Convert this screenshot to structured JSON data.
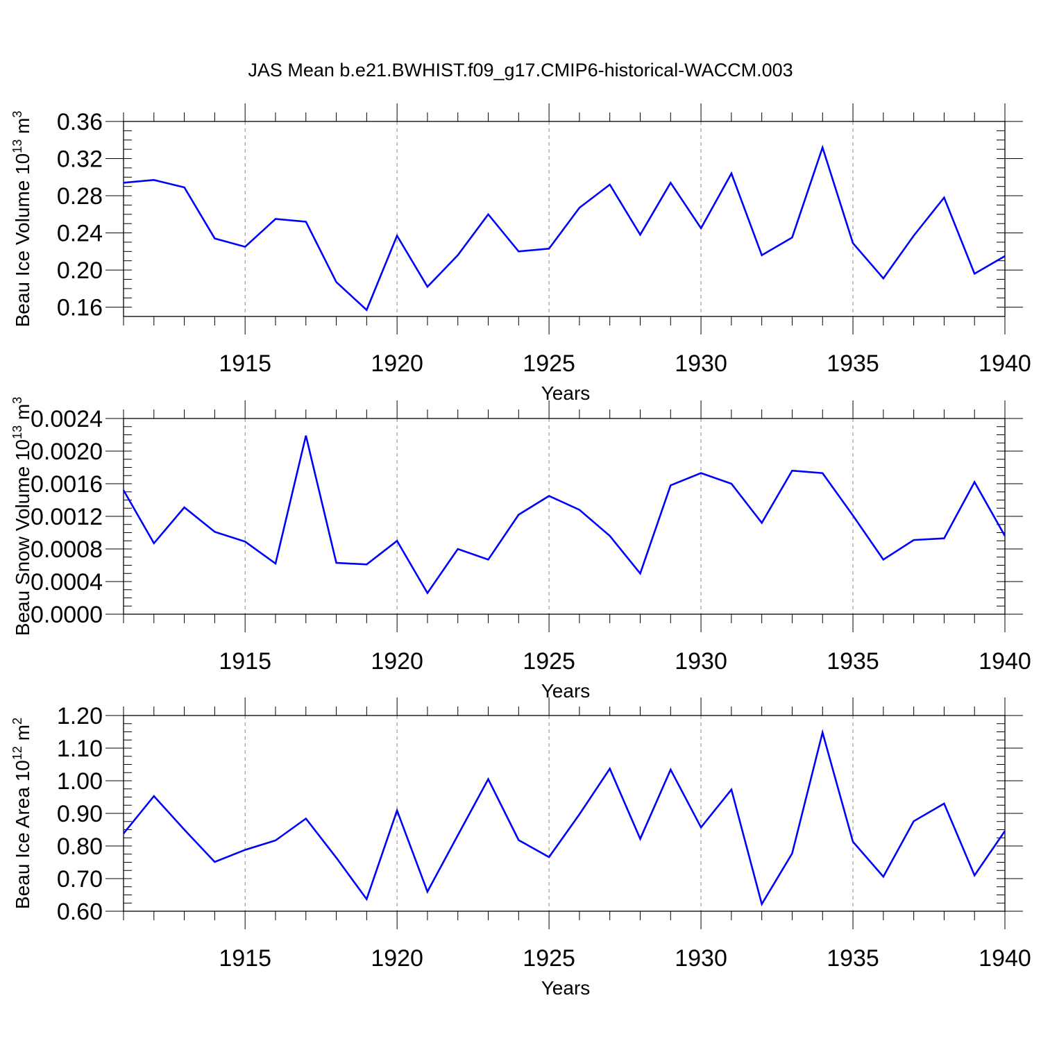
{
  "title": "JAS Mean b.e21.BWHIST.f09_g17.CMIP6-historical-WACCM.003",
  "chart_data": [
    {
      "type": "line",
      "title": "",
      "xlabel": "Years",
      "ylabel": {
        "text": "Beau Ice Volume 10",
        "sup": "13",
        "text2": " m",
        "sup2": "3"
      },
      "xlim": [
        1911,
        1940
      ],
      "ylim": [
        0.15,
        0.36
      ],
      "xticks": [
        "1915",
        "1920",
        "1925",
        "1930",
        "1935",
        "1940"
      ],
      "yticks": [
        "0.16",
        "0.20",
        "0.24",
        "0.28",
        "0.32",
        "0.36"
      ],
      "grid": "vertical dashed at major x ticks",
      "color": "#0000ff",
      "x": [
        1911,
        1912,
        1913,
        1914,
        1915,
        1916,
        1917,
        1918,
        1919,
        1920,
        1921,
        1922,
        1923,
        1924,
        1925,
        1926,
        1927,
        1928,
        1929,
        1930,
        1931,
        1932,
        1933,
        1934,
        1935,
        1936,
        1937,
        1938,
        1939,
        1940
      ],
      "values": [
        0.294,
        0.297,
        0.289,
        0.234,
        0.225,
        0.255,
        0.252,
        0.187,
        0.157,
        0.237,
        0.182,
        0.216,
        0.26,
        0.22,
        0.223,
        0.267,
        0.292,
        0.238,
        0.294,
        0.245,
        0.304,
        0.216,
        0.235,
        0.332,
        0.229,
        0.191,
        0.237,
        0.278,
        0.196,
        0.215
      ]
    },
    {
      "type": "line",
      "title": "",
      "xlabel": "Years",
      "ylabel": {
        "text": "Beau Snow Volume 10",
        "sup": "13",
        "text2": " m",
        "sup2": "3"
      },
      "xlim": [
        1911,
        1940
      ],
      "ylim": [
        0.0,
        0.0024
      ],
      "xticks": [
        "1915",
        "1920",
        "1925",
        "1930",
        "1935",
        "1940"
      ],
      "yticks": [
        "0.0000",
        "0.0004",
        "0.0008",
        "0.0012",
        "0.0016",
        "0.0020",
        "0.0024"
      ],
      "grid": "vertical dashed at major x ticks",
      "color": "#0000ff",
      "x": [
        1911,
        1912,
        1913,
        1914,
        1915,
        1916,
        1917,
        1918,
        1919,
        1920,
        1921,
        1922,
        1923,
        1924,
        1925,
        1926,
        1927,
        1928,
        1929,
        1930,
        1931,
        1932,
        1933,
        1934,
        1935,
        1936,
        1937,
        1938,
        1939,
        1940
      ],
      "values": [
        0.00152,
        0.00087,
        0.00131,
        0.00101,
        0.00089,
        0.00062,
        0.00219,
        0.00063,
        0.00061,
        0.0009,
        0.00026,
        0.0008,
        0.00067,
        0.00122,
        0.00145,
        0.00128,
        0.00096,
        0.0005,
        0.00158,
        0.00173,
        0.0016,
        0.00112,
        0.00176,
        0.00173,
        0.00121,
        0.00067,
        0.00091,
        0.00093,
        0.00162,
        0.00096
      ]
    },
    {
      "type": "line",
      "title": "",
      "xlabel": "Years",
      "ylabel": {
        "text": "Beau Ice Area 10",
        "sup": "12",
        "text2": " m",
        "sup2": "2"
      },
      "xlim": [
        1911,
        1940
      ],
      "ylim": [
        0.6,
        1.2
      ],
      "xticks": [
        "1915",
        "1920",
        "1925",
        "1930",
        "1935",
        "1940"
      ],
      "yticks": [
        "0.60",
        "0.70",
        "0.80",
        "0.90",
        "1.00",
        "1.10",
        "1.20"
      ],
      "grid": "vertical dashed at major x ticks",
      "color": "#0000ff",
      "x": [
        1911,
        1912,
        1913,
        1914,
        1915,
        1916,
        1917,
        1918,
        1919,
        1920,
        1921,
        1922,
        1923,
        1924,
        1925,
        1926,
        1927,
        1928,
        1929,
        1930,
        1931,
        1932,
        1933,
        1934,
        1935,
        1936,
        1937,
        1938,
        1939,
        1940
      ],
      "values": [
        0.838,
        0.953,
        0.85,
        0.751,
        0.788,
        0.817,
        0.884,
        0.764,
        0.637,
        0.909,
        0.66,
        0.833,
        1.005,
        0.818,
        0.766,
        0.897,
        1.037,
        0.822,
        1.034,
        0.857,
        0.973,
        0.622,
        0.777,
        1.148,
        0.813,
        0.706,
        0.876,
        0.93,
        0.71,
        0.846
      ]
    }
  ]
}
